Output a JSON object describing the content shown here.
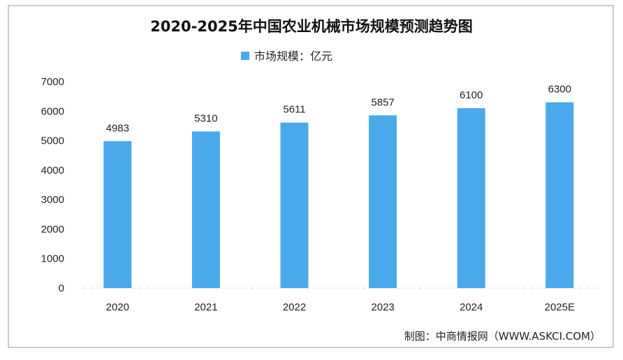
{
  "chart_data": {
    "type": "bar",
    "title": "2020-2025年中国农业机械市场规模预测趋势图",
    "legend": {
      "label": "市场规模：亿元",
      "placement": "top-center"
    },
    "categories": [
      "2020",
      "2021",
      "2022",
      "2023",
      "2024",
      "2025E"
    ],
    "values": [
      4983,
      5310,
      5611,
      5857,
      6100,
      6300
    ],
    "ylim": [
      0,
      7000
    ],
    "yticks": [
      "0",
      "1000",
      "2000",
      "3000",
      "4000",
      "5000",
      "6000",
      "7000"
    ],
    "xlabel": "",
    "ylabel": "",
    "grid": false,
    "bar_color": "#4aa9ea",
    "source": "制图：中商情报网（WWW.ASKCI.COM）"
  }
}
